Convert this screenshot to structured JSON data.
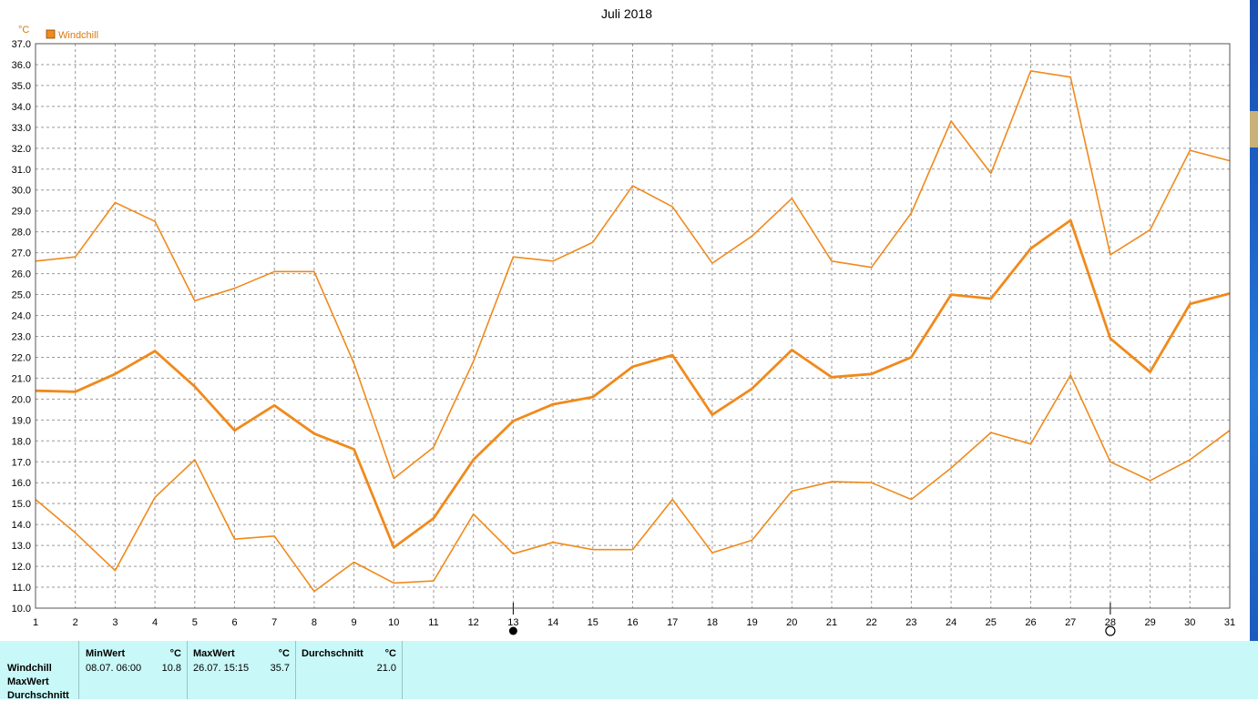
{
  "chart_data": {
    "type": "line",
    "title": "Juli 2018",
    "yunit": "°C",
    "legend": [
      {
        "name": "Windchill",
        "color": "#f08a1c"
      }
    ],
    "legend_placement": "top-left",
    "x": [
      1,
      2,
      3,
      4,
      5,
      6,
      7,
      8,
      9,
      10,
      11,
      12,
      13,
      14,
      15,
      16,
      17,
      18,
      19,
      20,
      21,
      22,
      23,
      24,
      25,
      26,
      27,
      28,
      29,
      30,
      31
    ],
    "ylim": [
      10.0,
      37.0
    ],
    "ystep": 1.0,
    "grid": true,
    "series": [
      {
        "role": "max",
        "width": 1.6,
        "values": [
          26.6,
          26.8,
          29.4,
          28.5,
          24.7,
          25.3,
          26.1,
          26.1,
          21.7,
          16.2,
          17.7,
          21.8,
          26.8,
          26.6,
          27.5,
          30.2,
          29.2,
          26.5,
          27.8,
          29.6,
          26.6,
          26.3,
          28.9,
          33.3,
          30.8,
          35.7,
          35.4,
          26.9,
          28.1,
          31.9,
          31.4
        ]
      },
      {
        "role": "avg",
        "width": 2.8,
        "values": [
          20.4,
          20.35,
          21.2,
          22.3,
          20.6,
          18.5,
          19.7,
          18.35,
          17.6,
          12.9,
          14.3,
          17.1,
          18.95,
          19.75,
          20.1,
          21.55,
          22.1,
          19.25,
          20.5,
          22.35,
          21.05,
          21.2,
          22.0,
          25.0,
          24.8,
          27.2,
          28.55,
          22.9,
          21.3,
          24.55,
          25.05
        ]
      },
      {
        "role": "min",
        "width": 1.6,
        "values": [
          15.2,
          13.6,
          11.8,
          15.3,
          17.1,
          13.3,
          13.45,
          10.8,
          12.2,
          11.2,
          11.3,
          14.5,
          12.6,
          13.15,
          12.8,
          12.8,
          15.2,
          12.65,
          13.25,
          15.6,
          16.05,
          16.0,
          15.2,
          16.7,
          18.4,
          17.85,
          21.15,
          17.0,
          16.1,
          17.1,
          18.5
        ]
      }
    ],
    "line_color": "#f08a1c",
    "moon_markers": [
      {
        "day": 13,
        "phase": "new-moon"
      },
      {
        "day": 28,
        "phase": "full-moon"
      }
    ]
  },
  "stats": {
    "row_labels": [
      "Windchill",
      "MaxWert",
      "Durchschnitt"
    ],
    "min": {
      "header": "MinWert",
      "unit": "°C",
      "date": "08.07.  06:00",
      "value": "10.8"
    },
    "max": {
      "header": "MaxWert",
      "unit": "°C",
      "date": "26.07.  15:15",
      "value": "35.7"
    },
    "avg": {
      "header": "Durchschnitt",
      "unit": "°C",
      "value": "21.0"
    }
  }
}
